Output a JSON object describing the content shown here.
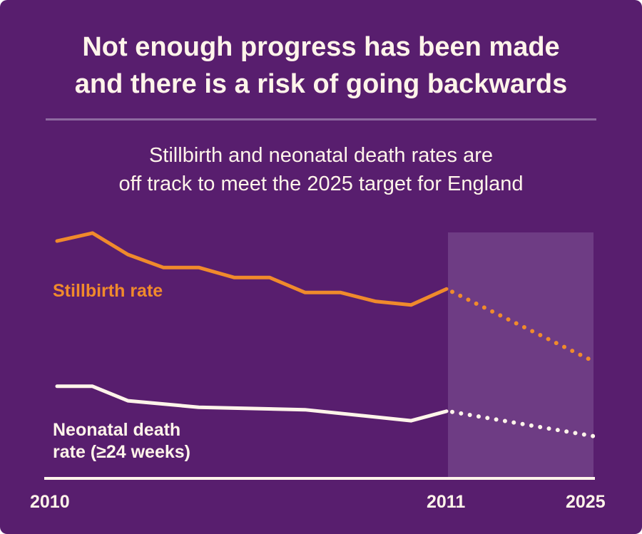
{
  "title_lines": [
    "Not enough progress has been made",
    "and there is a risk of going backwards"
  ],
  "subtitle_lines": [
    "Stillbirth and neonatal death rates are",
    "off track to meet the 2025 target for England"
  ],
  "colors": {
    "background": "#581e6e",
    "stillbirth": "#f08a2c",
    "neonatal": "#fff4ea",
    "projection_band": "#6e3c84"
  },
  "chart_data": {
    "type": "line",
    "xlim": [
      2010,
      2025
    ],
    "x_tick_labels": [
      "2010",
      "2011",
      "2025"
    ],
    "y_axis_shown": false,
    "grid": false,
    "projection_region": [
      2021,
      2025
    ],
    "series": [
      {
        "name": "Stillbirth rate",
        "points": [
          [
            2010,
            5.17
          ],
          [
            2011,
            5.33
          ],
          [
            2012,
            4.9
          ],
          [
            2013,
            4.64
          ],
          [
            2014,
            4.64
          ],
          [
            2015,
            4.44
          ],
          [
            2016,
            4.44
          ],
          [
            2017,
            4.14
          ],
          [
            2018,
            4.14
          ],
          [
            2019,
            3.96
          ],
          [
            2020,
            3.89
          ],
          [
            2021,
            4.21
          ]
        ],
        "projection": [
          [
            2021,
            4.21
          ],
          [
            2025,
            2.76
          ]
        ]
      },
      {
        "name": "Neonatal death rate (≥24 weeks)",
        "label_lines": [
          "Neonatal death",
          "rate (≥24 weeks)"
        ],
        "points": [
          [
            2010,
            2.26
          ],
          [
            2011,
            2.26
          ],
          [
            2012,
            1.97
          ],
          [
            2014,
            1.84
          ],
          [
            2017,
            1.79
          ],
          [
            2020,
            1.57
          ],
          [
            2021,
            1.76
          ]
        ],
        "projection": [
          [
            2021,
            1.76
          ],
          [
            2025,
            1.26
          ]
        ]
      }
    ]
  }
}
